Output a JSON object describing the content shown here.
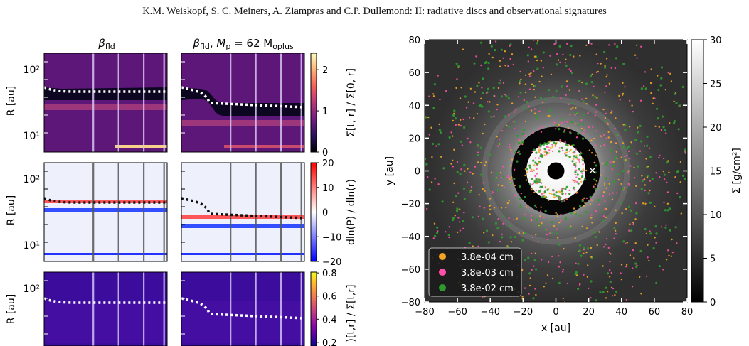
{
  "header": {
    "running_head": "K.M. Weiskopf, S. C. Meiners, A. Ziampras and C.P. Dullemond: II: radiative discs and observational signatures"
  },
  "colors": {
    "magma_stops": [
      "#000004",
      "#2c115f",
      "#721f81",
      "#b73779",
      "#f1605d",
      "#feb078",
      "#fcfdbf"
    ],
    "plasma_stops": [
      "#0d0887",
      "#5302a3",
      "#8b0aa5",
      "#b83289",
      "#db5c68",
      "#f48849",
      "#febd2a",
      "#f0f921"
    ],
    "bwr_stops": [
      "#0000ff",
      "#ffffff",
      "#ff0000"
    ],
    "dust_small": "#f5a623",
    "dust_mid": "#ff4fa6",
    "dust_large": "#2e9a2e"
  },
  "left_panels": {
    "col_titles": [
      "β_fld",
      "β_fld, M_p = 62 M_oplus"
    ],
    "col_title_1_prefix": "β",
    "col_title_1_sub": "fld",
    "col_title_2_mp": "M",
    "col_title_2_rest": " = 62 M",
    "col_title_2_sub_p": "p",
    "col_title_2_sub_o": "oplus",
    "ylabel": "R [au]",
    "yticks": [
      "10²",
      "10¹"
    ],
    "rows": [
      {
        "cbar_label": "Σ[t, r] / Σ[0, r]",
        "cbar_ticks": [
          "2",
          "1",
          "0"
        ],
        "cbar_range": [
          0,
          2.4
        ]
      },
      {
        "cbar_label": "dln(P) / dln(r)",
        "cbar_ticks": [
          "20",
          "10",
          "0",
          "−10",
          "−20"
        ],
        "cbar_range": [
          -20,
          20
        ]
      },
      {
        "cbar_label": "Σ[t,r] / Σ[t,r]",
        "cbar_label_visible": ")[t,r] / Σ[t,r]",
        "cbar_ticks": [
          "0.8",
          "0.6",
          "0.4",
          "0.2"
        ],
        "cbar_range": [
          0.15,
          0.85
        ]
      }
    ]
  },
  "chart_data": {
    "type": "scatter",
    "title": "",
    "xlabel": "x [au]",
    "ylabel": "y [au]",
    "xlim": [
      -80,
      80
    ],
    "ylim": [
      -80,
      80
    ],
    "xticks": [
      -80,
      -60,
      -40,
      -20,
      0,
      20,
      40,
      60,
      80
    ],
    "yticks": [
      80,
      60,
      40,
      20,
      0,
      -20,
      -40,
      -60,
      -80
    ],
    "background": "gas surface density Σ (gray map)",
    "colorbar": {
      "label": "Σ [g/cm²]",
      "ticks": [
        30,
        25,
        20,
        15,
        10,
        5,
        0
      ],
      "range": [
        0,
        30
      ]
    },
    "planet_marker": {
      "x": 22,
      "y": 0,
      "symbol": "×"
    },
    "series": [
      {
        "name": "3.8e-04 cm",
        "color": "#f5a623"
      },
      {
        "name": "3.8e-03 cm",
        "color": "#ff4fa6"
      },
      {
        "name": "3.8e-02 cm",
        "color": "#2e9a2e"
      }
    ],
    "legend": "lower-left"
  }
}
